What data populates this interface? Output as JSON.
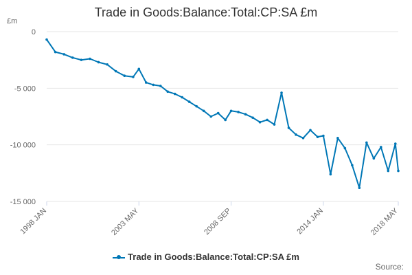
{
  "chart_data": {
    "type": "line",
    "title": "Trade in Goods:Balance:Total:CP:SA £m",
    "ylabel": "£m",
    "xlabel": "",
    "ylim": [
      -15000,
      0
    ],
    "yticks": [
      0,
      -5000,
      -10000,
      -15000
    ],
    "ytick_labels": [
      "0",
      "-5 000",
      "-10 000",
      "-15 000"
    ],
    "xlim": [
      "1998 JAN",
      "2018 MAY"
    ],
    "xtick_labels": [
      "1998 JAN",
      "2003 MAY",
      "2008 SEP",
      "2014 JAN",
      "2018 MAY"
    ],
    "grid": "horizontal",
    "legend_position": "bottom",
    "series": [
      {
        "name": "Trade in Goods:Balance:Total:CP:SA £m",
        "color": "#0077b6",
        "x": [
          "1998 JAN",
          "1998 JUL",
          "1999 JAN",
          "1999 JUL",
          "2000 JAN",
          "2000 JUL",
          "2001 JAN",
          "2001 JUL",
          "2002 JAN",
          "2002 JUL",
          "2003 JAN",
          "2003 MAY",
          "2003 OCT",
          "2004 MAR",
          "2004 AUG",
          "2005 JAN",
          "2005 JUN",
          "2005 NOV",
          "2006 APR",
          "2006 SEP",
          "2007 FEB",
          "2007 JUL",
          "2007 DEC",
          "2008 MAY",
          "2008 SEP",
          "2009 FEB",
          "2009 JUL",
          "2009 DEC",
          "2010 MAY",
          "2010 OCT",
          "2011 MAR",
          "2011 AUG",
          "2012 JAN",
          "2012 JUN",
          "2012 NOV",
          "2013 APR",
          "2013 SEP",
          "2014 JAN",
          "2014 JUN",
          "2014 NOV",
          "2015 APR",
          "2015 SEP",
          "2016 FEB",
          "2016 JUL",
          "2016 DEC",
          "2017 MAY",
          "2017 OCT",
          "2018 MAR",
          "2018 MAY"
        ],
        "values": [
          -700,
          -1800,
          -2000,
          -2300,
          -2500,
          -2400,
          -2700,
          -2900,
          -3500,
          -3900,
          -4000,
          -3300,
          -4500,
          -4700,
          -4800,
          -5300,
          -5500,
          -5800,
          -6200,
          -6600,
          -7000,
          -7500,
          -7200,
          -7800,
          -7000,
          -7100,
          -7300,
          -7600,
          -8000,
          -7800,
          -8200,
          -5400,
          -8500,
          -9100,
          -9400,
          -8700,
          -9300,
          -9200,
          -12600,
          -9400,
          -10300,
          -11800,
          -13800,
          -9800,
          -11200,
          -10200,
          -12300,
          -9900,
          -12300
        ]
      }
    ]
  },
  "legend": {
    "label": "Trade in Goods:Balance:Total:CP:SA £m"
  },
  "credit": {
    "text": "Source:"
  }
}
